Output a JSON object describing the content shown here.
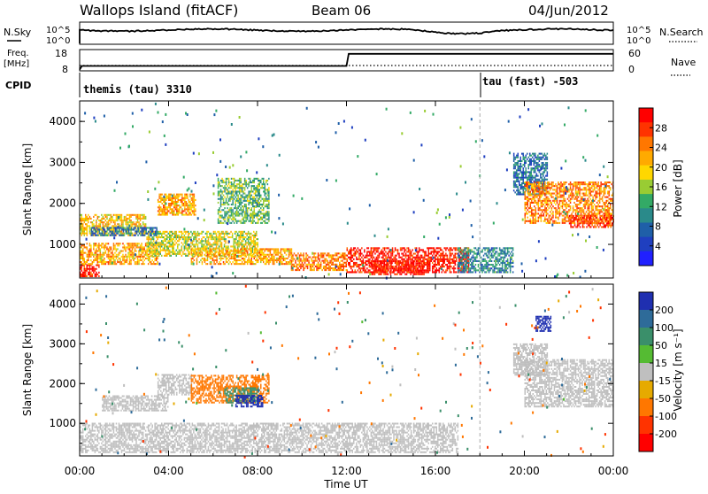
{
  "header": {
    "station": "Wallops Island (fitACF)",
    "beam": "Beam 06",
    "date": "04/Jun/2012"
  },
  "top_panels": {
    "nsky_label": "N.Sky",
    "nsearch_label": "N.Search",
    "nsky_tick_top": "10^5",
    "nsky_tick_bottom": "10^0",
    "nsearch_tick_top": "10^5",
    "nsearch_tick_bottom": "10^0",
    "freq_label_line1": "Freq.",
    "freq_label_line2": "[MHz]",
    "freq_tick_top": "18",
    "freq_tick_bottom": "8",
    "nave_label": "Nave",
    "nave_tick_top": "60",
    "nave_tick_bottom": "0",
    "cpid_label": "CPID",
    "cpid_first": "themis (tau) 3310",
    "cpid_second": "tau (fast) -503"
  },
  "axes": {
    "ylabel": "Slant Range [km]",
    "xlabel": "Time UT",
    "y_ticks": [
      "1000",
      "2000",
      "3000",
      "4000"
    ],
    "x_ticks": [
      "00:00",
      "04:00",
      "08:00",
      "12:00",
      "16:00",
      "20:00",
      "00:00"
    ]
  },
  "power_colorbar": {
    "label": "Power [dB]",
    "ticks": [
      "28",
      "24",
      "20",
      "16",
      "12",
      "8",
      "4"
    ],
    "colors": [
      "#ff0000",
      "#ff3300",
      "#ff7700",
      "#ffaa00",
      "#ffd700",
      "#99cc33",
      "#33aa66",
      "#2a8a8a",
      "#1f5fa8",
      "#1f3fc0",
      "#2020ff"
    ]
  },
  "velocity_colorbar": {
    "label": "Velocity [m s⁻¹]",
    "ticks": [
      "200",
      "100",
      "50",
      "15",
      "-15",
      "-50",
      "-100",
      "-200"
    ],
    "colors": [
      "#1f2fb0",
      "#2e6b99",
      "#3a8f6a",
      "#55bb33",
      "#bfbfbf",
      "#e6aa00",
      "#ff7700",
      "#ff3300",
      "#ff0000"
    ]
  },
  "chart_data": {
    "type": "heatmap",
    "x_unit": "hours UT",
    "y_unit": "km",
    "xlim": [
      0,
      24
    ],
    "ylim": [
      180,
      4500
    ],
    "mode_change_time": 18,
    "frequency_mhz": [
      {
        "x": 0,
        "y": 8.6
      },
      {
        "x": 0.1,
        "y": 10.3
      },
      {
        "x": 11.9,
        "y": 10.3
      },
      {
        "x": 12.0,
        "y": 10.3
      },
      {
        "x": 12.1,
        "y": 16.0
      },
      {
        "x": 24,
        "y": 16.0
      }
    ],
    "power_regions": [
      {
        "t0": 0.0,
        "t1": 0.9,
        "r0": 200,
        "r1": 500,
        "db": 30
      },
      {
        "t0": 0.0,
        "t1": 3.5,
        "r0": 500,
        "r1": 1000,
        "db": 22
      },
      {
        "t0": 0.0,
        "t1": 3.0,
        "r0": 1200,
        "r1": 1700,
        "db": 20
      },
      {
        "t0": 3.5,
        "t1": 5.2,
        "r0": 1700,
        "r1": 2200,
        "db": 22
      },
      {
        "t0": 6.2,
        "t1": 8.5,
        "r0": 1500,
        "r1": 2600,
        "db": 14
      },
      {
        "t0": 3.0,
        "t1": 8.0,
        "r0": 700,
        "r1": 1300,
        "db": 18
      },
      {
        "t0": 5.0,
        "t1": 9.5,
        "r0": 500,
        "r1": 900,
        "db": 22
      },
      {
        "t0": 9.5,
        "t1": 12.0,
        "r0": 350,
        "r1": 800,
        "db": 24
      },
      {
        "t0": 12.0,
        "t1": 17.5,
        "r0": 300,
        "r1": 900,
        "db": 30
      },
      {
        "t0": 13.0,
        "t1": 15.5,
        "r0": 250,
        "r1": 600,
        "db": 30
      },
      {
        "t0": 17.0,
        "t1": 19.5,
        "r0": 300,
        "r1": 900,
        "db": 10
      },
      {
        "t0": 19.5,
        "t1": 21.0,
        "r0": 2200,
        "r1": 3200,
        "db": 8
      },
      {
        "t0": 20.0,
        "t1": 24.0,
        "r0": 1500,
        "r1": 2500,
        "db": 24
      },
      {
        "t0": 22.0,
        "t1": 24.0,
        "r0": 1400,
        "r1": 1700,
        "db": 28
      },
      {
        "t0": 0.5,
        "t1": 3.5,
        "r0": 1200,
        "r1": 1400,
        "db": 8
      }
    ],
    "velocity_regions": [
      {
        "t0": 0.0,
        "t1": 17.0,
        "r0": 250,
        "r1": 1000,
        "v": 0
      },
      {
        "t0": 1.0,
        "t1": 4.0,
        "r0": 1300,
        "r1": 1700,
        "v": 0
      },
      {
        "t0": 3.5,
        "t1": 5.0,
        "r0": 1700,
        "r1": 2200,
        "v": 0
      },
      {
        "t0": 5.0,
        "t1": 8.5,
        "r0": 1500,
        "r1": 2200,
        "v": -60
      },
      {
        "t0": 6.5,
        "t1": 8.0,
        "r0": 1500,
        "r1": 1900,
        "v": 40
      },
      {
        "t0": 7.0,
        "t1": 8.2,
        "r0": 1400,
        "r1": 1700,
        "v": 180
      },
      {
        "t0": 19.5,
        "t1": 21.0,
        "r0": 2200,
        "r1": 3000,
        "v": 0
      },
      {
        "t0": 20.5,
        "t1": 21.2,
        "r0": 3300,
        "r1": 3700,
        "v": 220
      },
      {
        "t0": 20.0,
        "t1": 24.0,
        "r0": 1400,
        "r1": 2600,
        "v": 0
      }
    ]
  }
}
